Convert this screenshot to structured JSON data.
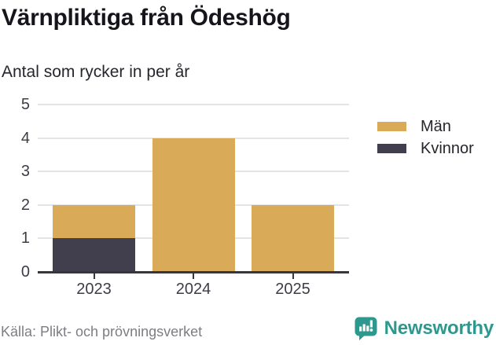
{
  "header": {
    "title": "Värnpliktiga från Ödeshög",
    "subtitle": "Antal som rycker in per år"
  },
  "chart_data": {
    "type": "bar",
    "stacked": true,
    "categories": [
      "2023",
      "2024",
      "2025"
    ],
    "series": [
      {
        "name": "Män",
        "color": "#d9ab58",
        "values": [
          1,
          4,
          2
        ]
      },
      {
        "name": "Kvinnor",
        "color": "#413f4d",
        "values": [
          1,
          0,
          0
        ]
      }
    ],
    "stack_order": [
      "Kvinnor",
      "Män"
    ],
    "title": "Värnpliktiga från Ödeshög",
    "subtitle": "Antal som rycker in per år",
    "xlabel": "",
    "ylabel": "",
    "ylim": [
      0,
      5
    ],
    "yticks": [
      0,
      1,
      2,
      3,
      4,
      5
    ],
    "grid": true,
    "legend_position": "right",
    "colors": {
      "grid": "#e4e4e8",
      "axis": "#38353f",
      "tick_label": "#3d3d46"
    }
  },
  "legend": {
    "items": [
      {
        "label": "Män",
        "color": "#d9ab58"
      },
      {
        "label": "Kvinnor",
        "color": "#413f4d"
      }
    ]
  },
  "footer": {
    "source": "Källa: Plikt- och prövningsverket",
    "brand": "Newsworthy",
    "brand_color": "#2e988e"
  }
}
